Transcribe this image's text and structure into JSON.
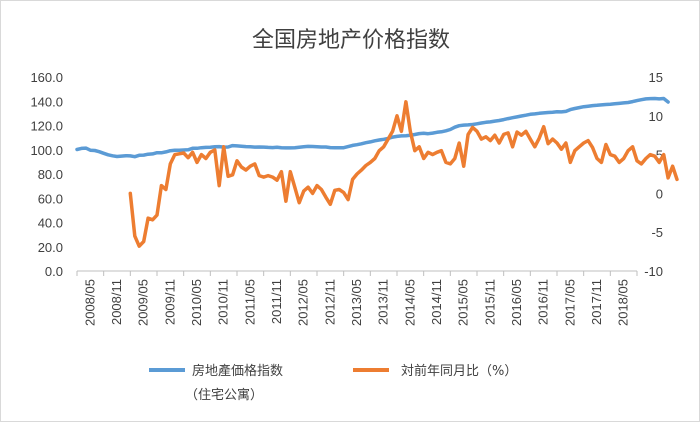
{
  "chart_data": {
    "type": "line",
    "title": "全国房地产价格指数",
    "x_tick_labels": [
      "2008/05",
      "2008/11",
      "2009/05",
      "2009/11",
      "2010/05",
      "2010/11",
      "2011/05",
      "2011/11",
      "2012/05",
      "2012/11",
      "2013/05",
      "2013/11",
      "2014/05",
      "2014/11",
      "2015/05",
      "2015/11",
      "2016/05",
      "2016/11",
      "2017/05",
      "2017/11",
      "2018/05"
    ],
    "y_left": {
      "min": 0,
      "max": 160,
      "step": 20,
      "ticks": [
        "0.0",
        "20.0",
        "40.0",
        "60.0",
        "80.0",
        "100.0",
        "120.0",
        "140.0",
        "160.0"
      ]
    },
    "y_right": {
      "min": -10,
      "max": 15,
      "step": 5,
      "ticks": [
        "-10",
        "-5",
        "0",
        "5",
        "10",
        "15"
      ]
    },
    "grid": false,
    "legend_position": "bottom",
    "colors": {
      "index": "#5b9bd5",
      "yoy": "#ed7d31"
    },
    "series": [
      {
        "name": "房地產価格指数",
        "name_line2": "（住宅公寓）",
        "axis": "left",
        "start": "2008/05",
        "values": [
          100.2,
          101.1,
          101.4,
          99.6,
          99.4,
          98.4,
          97.1,
          95.8,
          95.0,
          94.4,
          94.8,
          95.1,
          94.9,
          94.3,
          95.4,
          95.6,
          96.3,
          96.6,
          97.6,
          97.5,
          98.2,
          99.2,
          99.6,
          99.6,
          99.8,
          100.0,
          101.2,
          101.2,
          101.7,
          101.9,
          102.1,
          102.4,
          102.6,
          102.2,
          102.3,
          103.4,
          103.2,
          102.9,
          102.6,
          102.4,
          102.2,
          102.3,
          102.2,
          101.9,
          101.8,
          102.0,
          101.6,
          101.5,
          101.5,
          101.7,
          102.0,
          102.4,
          102.8,
          102.7,
          102.5,
          102.3,
          102.3,
          101.8,
          101.6,
          101.6,
          101.7,
          102.6,
          103.6,
          104.2,
          104.9,
          105.8,
          106.5,
          107.4,
          108.0,
          108.6,
          109.3,
          110.4,
          111.0,
          111.4,
          111.6,
          111.9,
          112.6,
          113.3,
          113.6,
          113.2,
          113.7,
          114.4,
          114.8,
          115.6,
          116.7,
          118.6,
          119.8,
          120.3,
          120.5,
          120.8,
          121.4,
          122.1,
          122.6,
          123.0,
          123.6,
          124.1,
          124.9,
          125.7,
          126.4,
          127.1,
          127.8,
          128.5,
          129.2,
          129.6,
          130.1,
          130.4,
          130.7,
          130.9,
          131.3,
          131.2,
          131.6,
          133.1,
          134.0,
          134.8,
          135.5,
          135.9,
          136.4,
          136.7,
          137.0,
          137.3,
          137.5,
          137.9,
          138.2,
          138.6,
          139.0,
          139.7,
          140.5,
          141.3,
          141.9,
          142.2,
          142.3,
          141.9,
          142.3,
          139.4
        ]
      },
      {
        "name": "対前年同月比（%）",
        "axis": "right",
        "start": "2009/05",
        "values": [
          0.0,
          -5.5,
          -6.8,
          -6.2,
          -3.2,
          -3.4,
          -2.8,
          1.0,
          0.5,
          3.8,
          5.0,
          5.1,
          5.2,
          4.6,
          5.3,
          4.0,
          5.0,
          4.5,
          5.3,
          5.6,
          1.0,
          6.0,
          2.2,
          2.4,
          4.2,
          3.4,
          3.0,
          3.5,
          3.8,
          2.3,
          2.1,
          2.3,
          2.1,
          1.7,
          2.8,
          -1.0,
          2.8,
          0.8,
          -1.2,
          0.3,
          0.8,
          0.0,
          1.0,
          0.5,
          -0.5,
          -1.4,
          0.4,
          0.5,
          0.1,
          -0.8,
          1.8,
          2.5,
          3.0,
          3.6,
          4.0,
          4.5,
          5.5,
          6.0,
          7.0,
          8.0,
          10.0,
          8.0,
          11.8,
          8.0,
          5.5,
          6.0,
          4.5,
          5.3,
          5.0,
          5.3,
          5.5,
          4.0,
          3.8,
          4.5,
          6.5,
          3.5,
          7.6,
          8.5,
          8.0,
          7.0,
          7.3,
          6.8,
          7.5,
          6.5,
          7.6,
          7.8,
          6.0,
          7.9,
          7.5,
          8.0,
          7.0,
          6.0,
          7.1,
          8.6,
          6.4,
          7.0,
          6.5,
          5.7,
          6.5,
          4.0,
          5.5,
          6.0,
          6.5,
          6.8,
          5.9,
          4.5,
          4.0,
          6.3,
          5.0,
          4.8,
          4.0,
          4.5,
          5.5,
          6.0,
          4.2,
          3.8,
          4.5,
          5.0,
          4.8,
          4.0,
          5.0,
          2.0,
          3.5,
          1.8
        ]
      }
    ]
  }
}
